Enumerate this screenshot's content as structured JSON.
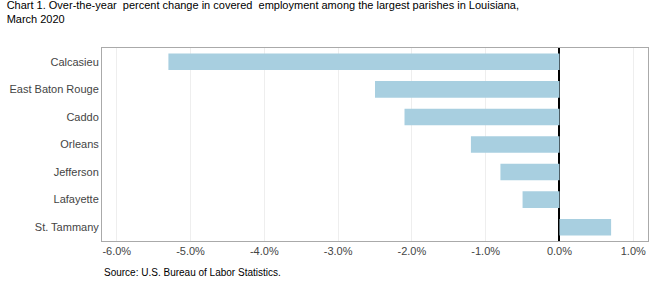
{
  "chart_data": {
    "type": "bar",
    "orientation": "horizontal",
    "title": "Chart 1. Over-the-year  percent change in covered  employment among the largest parishes in Louisiana,",
    "subtitle": "March 2020",
    "categories": [
      "Calcasieu",
      "East Baton Rouge",
      "Caddo",
      "Orleans",
      "Jefferson",
      "Lafayette",
      "St. Tammany"
    ],
    "values": [
      -0.053,
      -0.025,
      -0.021,
      -0.012,
      -0.008,
      -0.005,
      0.007
    ],
    "color": "#a8cfe0",
    "xlim": [
      -0.062,
      0.012
    ],
    "xticks": [
      {
        "value": -0.06,
        "label": "-6.0%"
      },
      {
        "value": -0.05,
        "label": "-5.0%"
      },
      {
        "value": -0.04,
        "label": "-4.0%"
      },
      {
        "value": -0.03,
        "label": "-3.0%"
      },
      {
        "value": -0.02,
        "label": "-2.0%"
      },
      {
        "value": -0.01,
        "label": "-1.0%"
      },
      {
        "value": 0.0,
        "label": "0.0%"
      },
      {
        "value": 0.01,
        "label": "1.0%"
      }
    ],
    "grid": true,
    "annotations": [
      "Source: U.S. Bureau of Labor Statistics."
    ]
  }
}
